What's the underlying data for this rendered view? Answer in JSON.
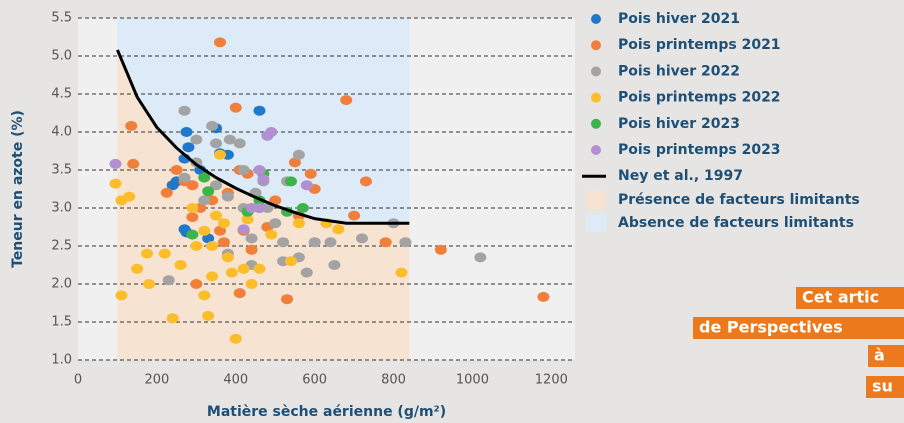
{
  "chart_data": {
    "type": "scatter",
    "xlabel": "Matière sèche aérienne (g/m²)",
    "ylabel": "Teneur en azote (%)",
    "xlim": [
      0,
      1260
    ],
    "ylim": [
      1.0,
      5.5
    ],
    "xticks": [
      0,
      200,
      400,
      600,
      800,
      1000,
      1200
    ],
    "yticks": [
      {
        "value": 1.0,
        "label": "1.0"
      },
      {
        "value": 1.5,
        "label": "1.5"
      },
      {
        "value": 2.0,
        "label": "2.0"
      },
      {
        "value": 2.5,
        "label": "2.5"
      },
      {
        "value": 3.0,
        "label": "3.0"
      },
      {
        "value": 3.5,
        "label": "3.5"
      },
      {
        "value": 4.0,
        "label": "4.0"
      },
      {
        "value": 4.5,
        "label": "4.5"
      },
      {
        "value": 5.0,
        "label": "5.0"
      },
      {
        "value": 5.5,
        "label": "5.5"
      }
    ],
    "grid": true,
    "series": [
      {
        "name": "Pois hiver 2021",
        "color": "#1f78c8",
        "x": [
          270,
          275,
          280,
          270,
          275,
          250,
          350,
          360,
          310,
          460,
          330,
          380,
          460,
          240
        ],
        "y": [
          3.65,
          4.0,
          3.8,
          2.72,
          2.68,
          3.35,
          4.05,
          3.72,
          3.5,
          4.28,
          2.6,
          3.7,
          3.0,
          3.3
        ]
      },
      {
        "name": "Pois printemps 2021",
        "color": "#f07f3c",
        "x": [
          360,
          135,
          140,
          225,
          250,
          270,
          290,
          310,
          340,
          400,
          410,
          430,
          380,
          360,
          420,
          440,
          300,
          410,
          530,
          680,
          730,
          700,
          780,
          920,
          1180,
          590,
          600,
          550,
          500,
          480,
          560,
          290,
          370
        ],
        "y": [
          5.18,
          4.08,
          3.58,
          3.2,
          3.5,
          3.35,
          3.3,
          3.0,
          3.1,
          4.32,
          3.5,
          3.45,
          3.2,
          2.7,
          2.7,
          2.45,
          2.0,
          1.88,
          1.8,
          4.42,
          3.35,
          2.9,
          2.55,
          2.45,
          1.83,
          3.45,
          3.25,
          3.6,
          3.1,
          2.75,
          2.9,
          2.88,
          2.55
        ]
      },
      {
        "name": "Pois hiver 2022",
        "color": "#a3a3a3",
        "x": [
          270,
          340,
          385,
          420,
          270,
          300,
          320,
          350,
          380,
          420,
          450,
          480,
          500,
          530,
          560,
          520,
          560,
          600,
          640,
          650,
          720,
          800,
          830,
          1020,
          440,
          380,
          230,
          440,
          520,
          580,
          470,
          300,
          410,
          350
        ],
        "y": [
          4.28,
          4.08,
          3.9,
          3.5,
          3.4,
          3.6,
          3.1,
          3.3,
          3.15,
          3.0,
          3.2,
          3.0,
          2.8,
          3.35,
          3.7,
          2.55,
          2.35,
          2.55,
          2.55,
          2.25,
          2.6,
          2.8,
          2.55,
          2.35,
          2.6,
          2.4,
          2.05,
          2.25,
          2.3,
          2.15,
          3.35,
          3.9,
          3.85,
          3.85
        ]
      },
      {
        "name": "Pois printemps 2022",
        "color": "#fbbd2a",
        "x": [
          95,
          110,
          130,
          110,
          150,
          175,
          180,
          220,
          240,
          260,
          300,
          320,
          320,
          330,
          340,
          350,
          360,
          370,
          380,
          390,
          400,
          420,
          440,
          430,
          460,
          490,
          540,
          560,
          630,
          660,
          820,
          290,
          340
        ],
        "y": [
          3.32,
          3.1,
          3.15,
          1.85,
          2.2,
          2.4,
          2.0,
          2.4,
          1.55,
          2.25,
          2.5,
          2.7,
          1.85,
          1.58,
          2.5,
          2.9,
          3.7,
          2.8,
          2.35,
          2.15,
          1.28,
          2.2,
          2.0,
          2.85,
          2.2,
          2.65,
          2.3,
          2.8,
          2.8,
          2.72,
          2.15,
          3.0,
          2.1
        ]
      },
      {
        "name": "Pois hiver 2023",
        "color": "#3bb44a",
        "x": [
          330,
          430,
          460,
          540,
          530,
          570,
          290,
          470,
          320
        ],
        "y": [
          3.22,
          2.95,
          3.1,
          3.35,
          2.95,
          3.0,
          2.65,
          3.45,
          3.4
        ]
      },
      {
        "name": "Pois printemps 2023",
        "color": "#b28fd0",
        "x": [
          95,
          460,
          480,
          490,
          580,
          460,
          420,
          440,
          470
        ],
        "y": [
          3.58,
          3.5,
          3.95,
          4.0,
          3.3,
          3.0,
          2.72,
          3.0,
          3.38
        ]
      },
      {
        "name": "Ney et al., 1997",
        "color": "#000000",
        "type": "line",
        "x": [
          100,
          150,
          200,
          250,
          300,
          350,
          400,
          450,
          500,
          550,
          600,
          680,
          840
        ],
        "y": [
          5.08,
          4.46,
          4.06,
          3.79,
          3.57,
          3.4,
          3.26,
          3.14,
          3.03,
          2.94,
          2.86,
          2.8,
          2.8
        ]
      }
    ],
    "areas": [
      {
        "name": "Présence de facteurs limitants",
        "color": "#f6e3d2"
      },
      {
        "name": "Absence de facteurs limitants",
        "color": "#dcebf7"
      }
    ],
    "banner": [
      "Cet artic",
      "de Perspectives",
      "à",
      "su"
    ]
  }
}
